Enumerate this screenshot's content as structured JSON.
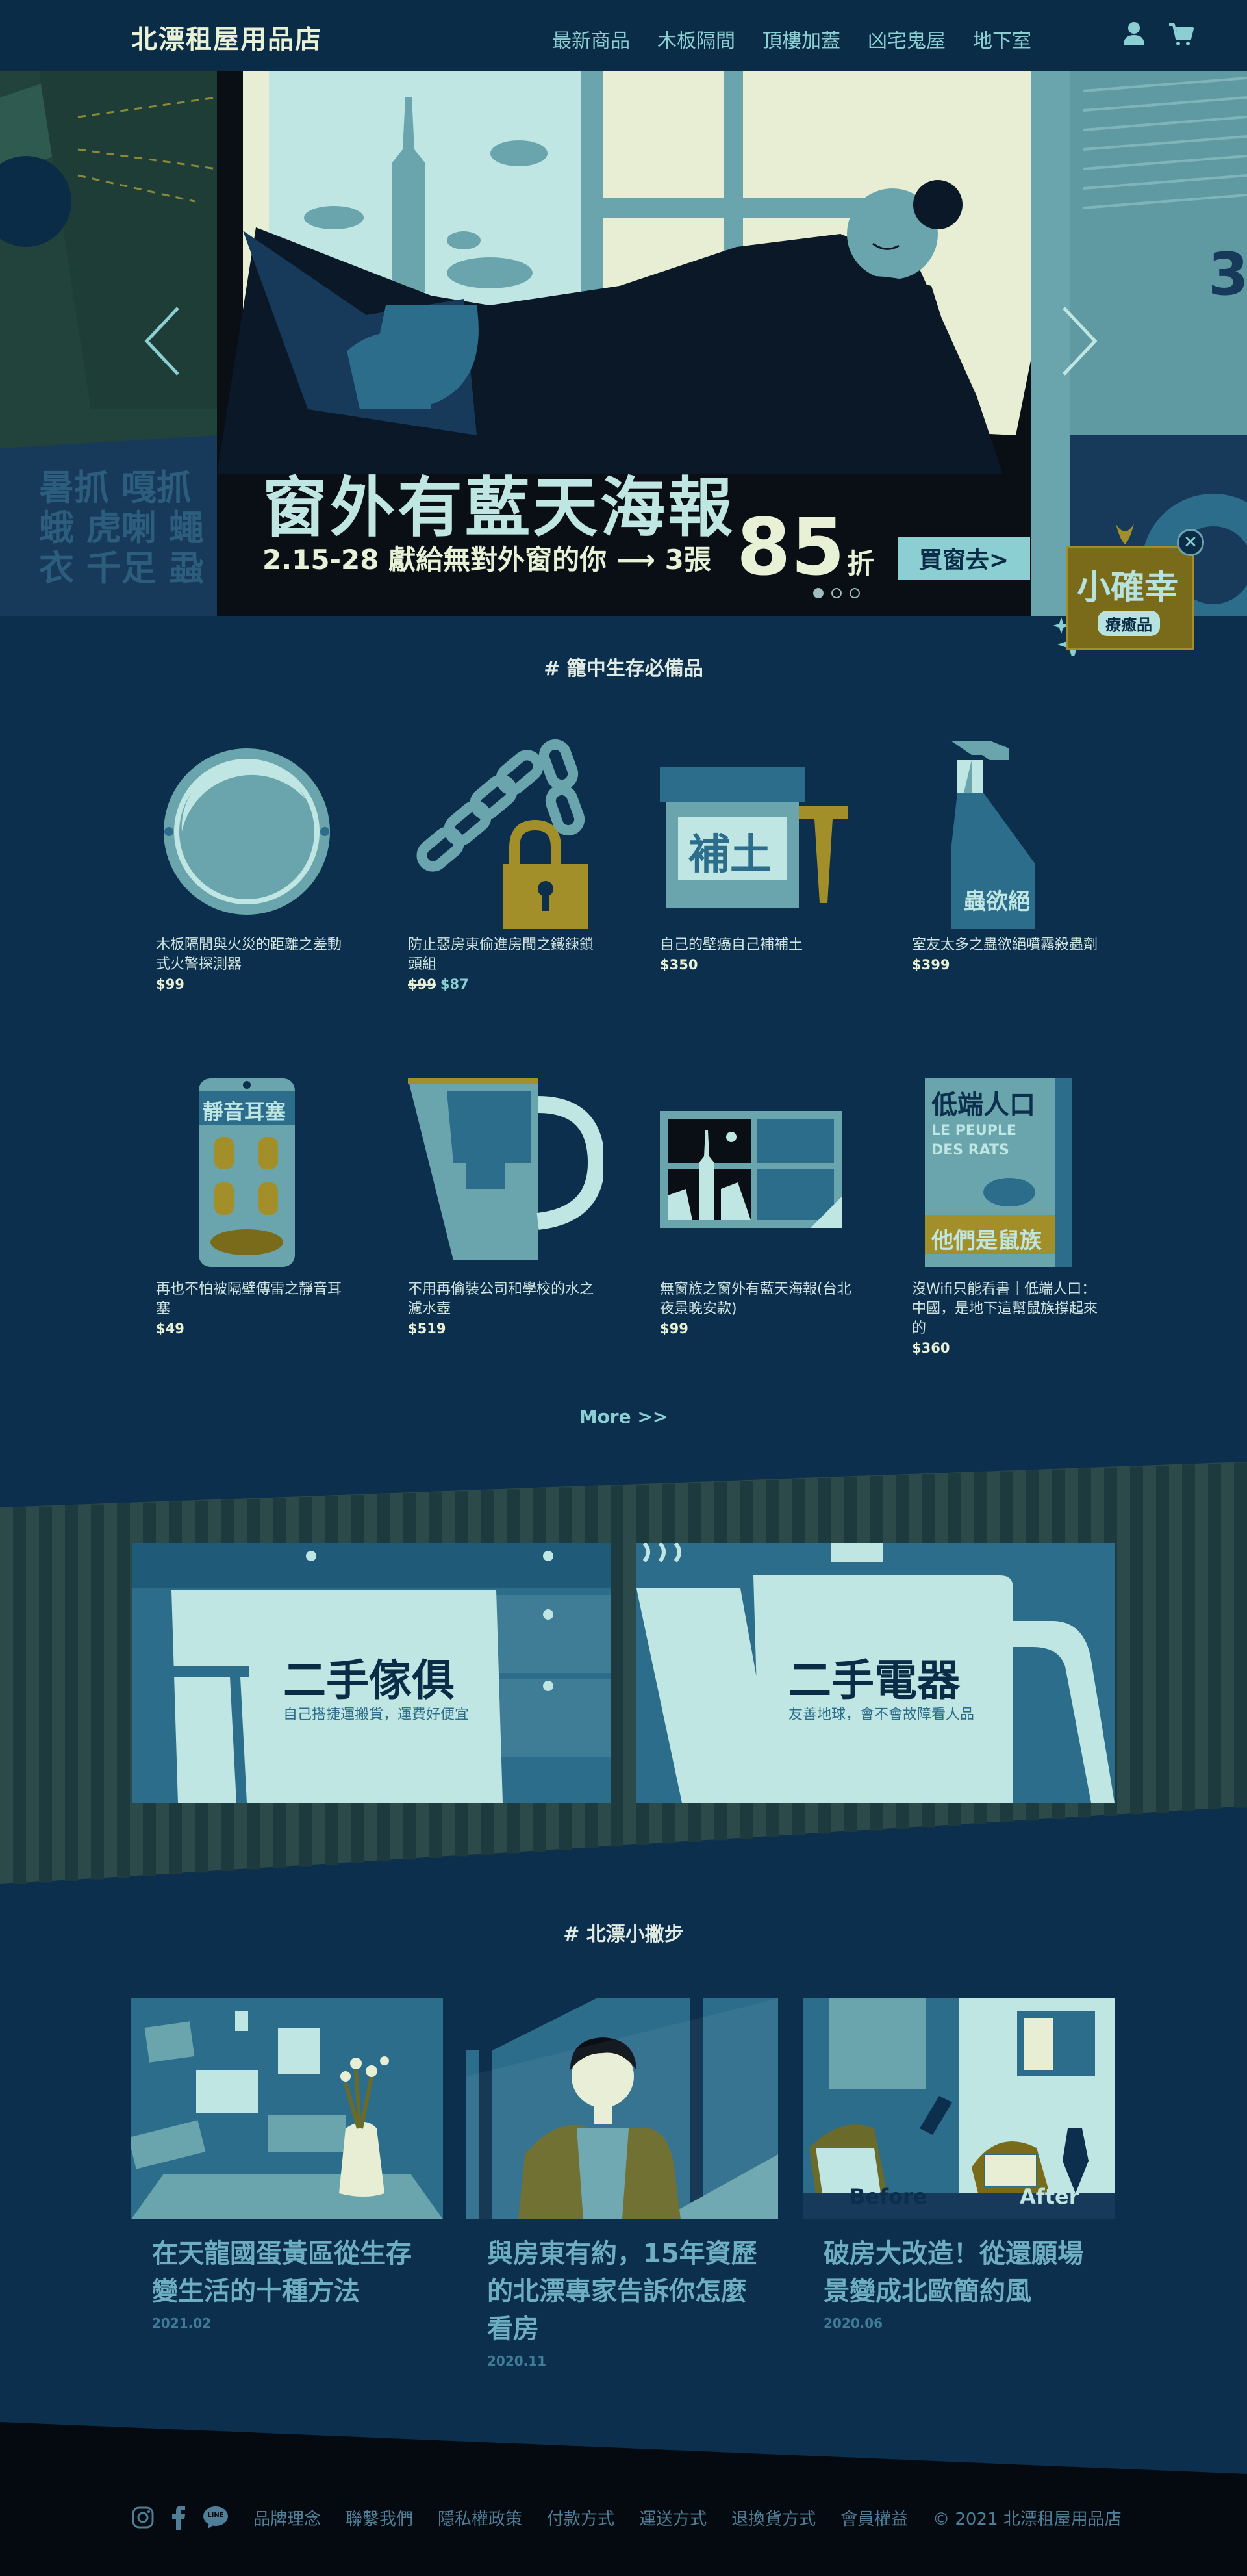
{
  "brand": {
    "logo": "北漂租屋用品店"
  },
  "nav": [
    {
      "label": "最新商品"
    },
    {
      "label": "木板隔間"
    },
    {
      "label": "頂樓加蓋"
    },
    {
      "label": "凶宅鬼屋"
    },
    {
      "label": "地下室"
    }
  ],
  "header_icons": [
    "user-icon",
    "cart-icon"
  ],
  "hero": {
    "title": "窗外有藍天海報",
    "subtitle": "2.15-28  獻給無對外窗的你 ⟶ 3張",
    "discount_number": "85",
    "discount_unit": "折",
    "cta_label": "買窗去>",
    "dots_total": 3,
    "dot_active": 1,
    "left_side_text": "暑抓 嘎抓 蛾 虎喇 蠅 衣 千足 蝨",
    "right_side_text": "3",
    "badge": {
      "title": "小確幸",
      "tag": "療癒品",
      "close": "✕"
    }
  },
  "products_section": {
    "title": "# 籠中生存必備品",
    "items": [
      {
        "name": "木板隔間與火災的距離之差動式火警探測器",
        "price": "$99",
        "image": "smoke-detector"
      },
      {
        "name": "防止惡房東偷進房間之鐵鍊鎖頭組",
        "old_price": "$99",
        "price": "$87",
        "image": "chain-lock"
      },
      {
        "name": "自己的壁癌自己補補土",
        "price": "$350",
        "image": "putty",
        "image_label": "補土"
      },
      {
        "name": "室友太多之蟲欲絕噴霧殺蟲劑",
        "price": "$399",
        "image": "spray-bottle",
        "image_label": "蟲欲絕"
      },
      {
        "name": "再也不怕被隔壁傳雷之靜音耳塞",
        "price": "$49",
        "image": "earplugs",
        "image_label": "靜音耳塞"
      },
      {
        "name": "不用再偷裝公司和學校的水之濾水壺",
        "price": "$519",
        "image": "water-pitcher"
      },
      {
        "name": "無窗族之窗外有藍天海報(台北夜景晚安款)",
        "price": "$99",
        "image": "window-poster"
      },
      {
        "name": "沒Wifi只能看書｜低端人口：中國，是地下這幫鼠族撐起來的",
        "price": "$360",
        "image": "book",
        "image_label_1": "低端人口",
        "image_label_2": "LE PEUPLE DES RATS",
        "image_label_3": "他們是鼠族"
      }
    ],
    "more_label": "More >>"
  },
  "categories": [
    {
      "title": "二手傢俱",
      "subtitle": "自己搭捷運搬貨，運費好便宜"
    },
    {
      "title": "二手電器",
      "subtitle": "友善地球，會不會故障看人品"
    }
  ],
  "blog_section": {
    "title": "# 北漂小撇步",
    "posts": [
      {
        "title": "在天龍國蛋黃區從生存變生活的十種方法",
        "date": "2021.02",
        "image": "wall-memo"
      },
      {
        "title": "與房東有約，15年資歷的北漂專家告訴你怎麼看房",
        "date": "2020.11",
        "image": "man-portrait"
      },
      {
        "title": "破房大改造！從還願場景變成北歐簡約風",
        "date": "2020.06",
        "image": "before-after",
        "before": "Before",
        "after": "After"
      }
    ]
  },
  "footer": {
    "social_icons": [
      "instagram-icon",
      "facebook-icon",
      "line-icon"
    ],
    "line_text": "LINE",
    "links": [
      {
        "label": "品牌理念"
      },
      {
        "label": "聯繫我們"
      },
      {
        "label": "隱私權政策"
      },
      {
        "label": "付款方式"
      },
      {
        "label": "運送方式"
      },
      {
        "label": "退換貨方式"
      },
      {
        "label": "會員權益"
      }
    ],
    "copyright": "© 2021 北漂租屋用品店"
  },
  "colors": {
    "background": "#0b2f4c",
    "accent": "#8ccfd3",
    "olive": "#7a6b1b",
    "footer": "#050a10"
  }
}
